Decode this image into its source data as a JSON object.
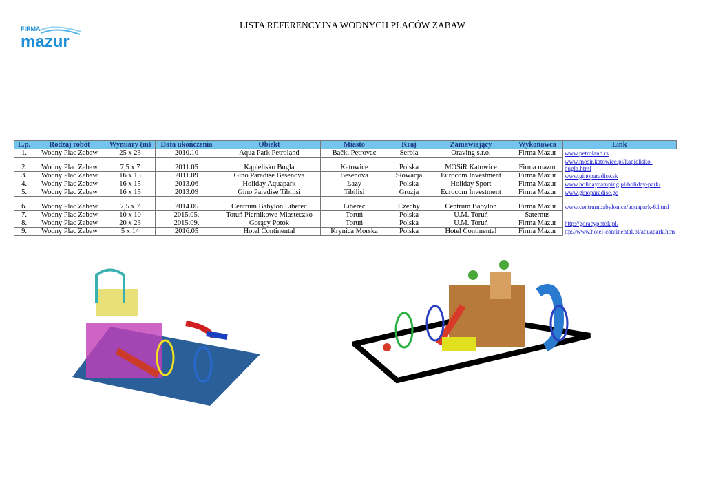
{
  "logo": {
    "small": "FIRMA",
    "big": "mazur",
    "color": "#1e8fd6"
  },
  "title": "LISTA REFERENCYJNA WODNYCH PLACÓW ZABAW",
  "table": {
    "headers": [
      "L.p.",
      "Rodzaj robót",
      "Wymiary (m)",
      "Data ukończenia",
      "Obiekt",
      "Miasto",
      "Kraj",
      "Zamawiający",
      "Wykonawca",
      "Link"
    ],
    "rows": [
      [
        "1.",
        "Wodny Plac Zabaw",
        "25 x 23",
        "2010.10",
        "Aqua Park Petroland",
        "Bački Petrovac",
        "Serbia",
        "Oraving s.r.o.",
        "Firma Mazur",
        "www.petroland.rs"
      ],
      [
        "2.",
        "Wodny Plac Zabaw",
        "7,5 x 7",
        "2011.05",
        "Kąpielisko Bugla",
        "Katowice",
        "Polska",
        "MOSiR Katowice",
        "Firma mazur",
        "www.mosir.katowice.pl/kapielisko-bugla.html"
      ],
      [
        "3.",
        "Wodny Plac Zabaw",
        "16 x 15",
        "2011.09",
        "Gino Paradise Besenova",
        "Besenova",
        "Słowacja",
        "Eurocom Investment",
        "Firma Mazur",
        "www.ginoparadise.sk"
      ],
      [
        "4.",
        "Wodny Plac Zabaw",
        "16 x 15",
        "2013.06",
        "Holiday Aquapark",
        "Łazy",
        "Polska",
        "Holiday Sport",
        "Firma Mazur",
        "www.holidaycamping.pl/holiday-park/"
      ],
      [
        "5.",
        "Wodny Plac Zabaw",
        "16 x 15",
        "2013.09",
        "Gino Paradise Tibilisi",
        "Tibilisi",
        "Gruzja",
        "Eurocom Investment",
        "Firma Mazur",
        "www.ginoparadise.ge"
      ],
      [
        "6.",
        "Wodny Plac Zabaw",
        "7,5 x 7",
        "2014.05",
        "Centrum Babylon Liberec",
        "Liberec",
        "Czechy",
        "Centrum Babylon",
        "Firma Mazur",
        "www.centrumbabylon.cz/aquapark-6.html"
      ],
      [
        "7.",
        "Wodny Plac Zabaw",
        "10 x 10",
        "2015.05.",
        "Totuń Piernikowe Miasteczko",
        "Toruń",
        "Polska",
        "U.M. Toruń",
        "Saternus",
        ""
      ],
      [
        "8.",
        "Wodny Plac Zabaw",
        "20 x 23",
        "2015.09.",
        "Gorący Potok",
        "Toruń",
        "Polska",
        "U.M. Toruń",
        "Firma Mazur",
        "http://goracypotok.pl/"
      ],
      [
        "9.",
        "Wodny Plac Zabaw",
        "5 x 14",
        "2016.05",
        "Hotel Continental",
        "Krynica Morska",
        "Polska",
        "Hotel Continental",
        "Firma Mazur",
        "ttp://www.hotel-continental.pl/aquapark.htm"
      ]
    ]
  }
}
